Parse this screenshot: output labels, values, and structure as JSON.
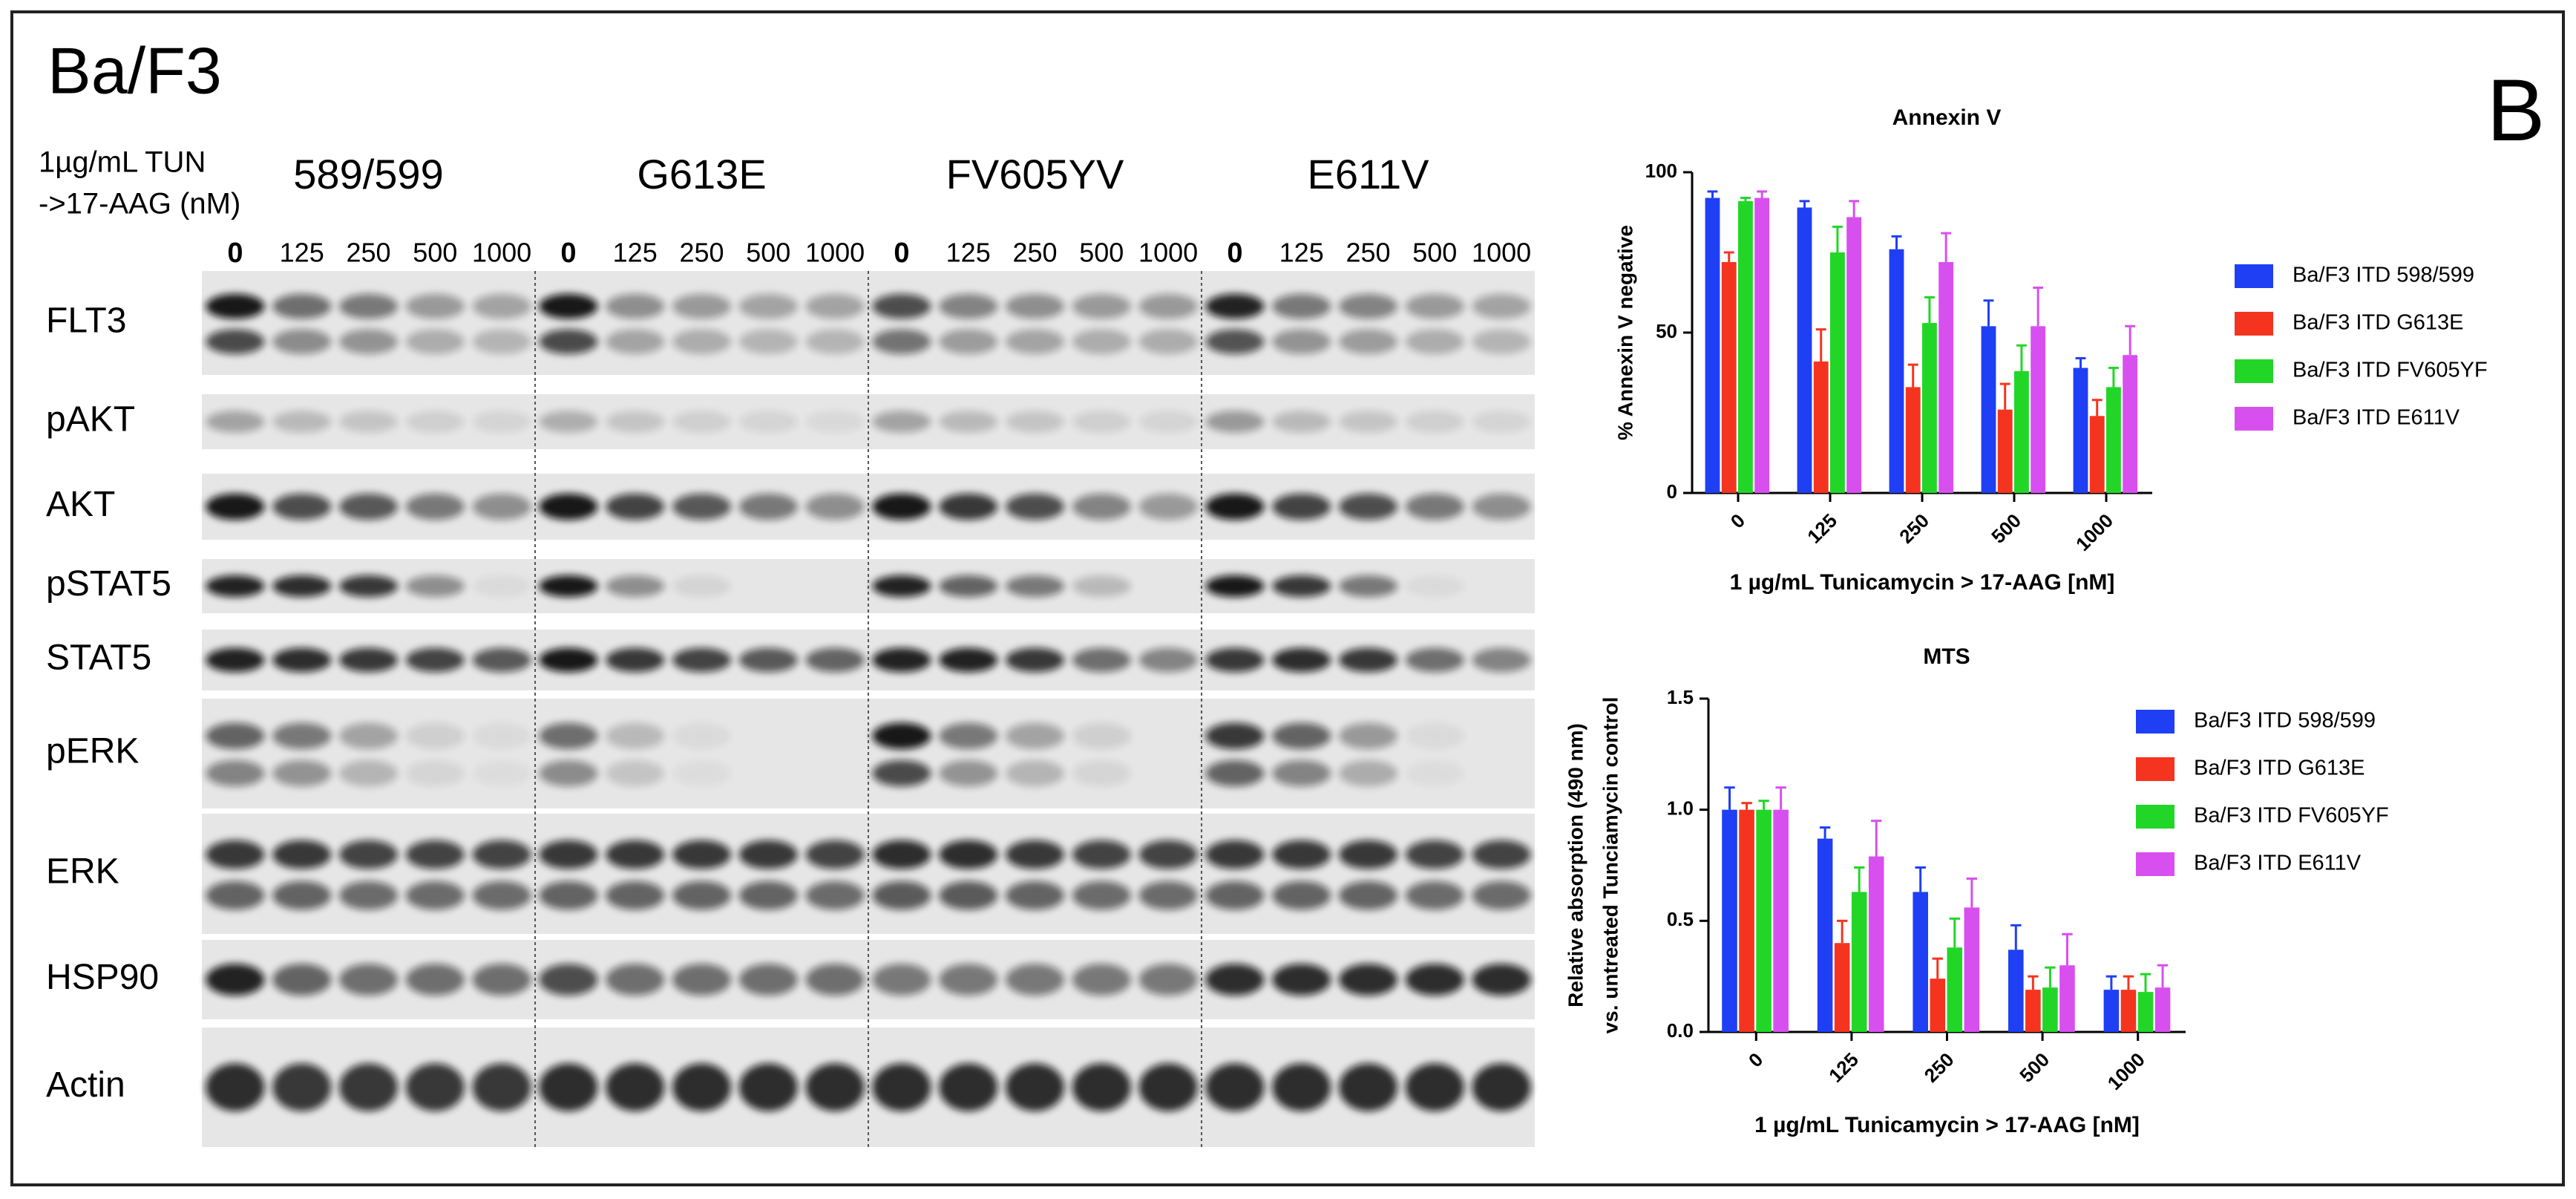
{
  "figure": {
    "title": "Ba/F3",
    "panel": "B",
    "treatment": [
      "1µg/mL TUN",
      "->17-AAG (nM)"
    ],
    "cell_lines": [
      "589/599",
      "G613E",
      "FV605YV",
      "E611V"
    ],
    "concentrations": [
      "0",
      "125",
      "250",
      "500",
      "1000"
    ],
    "proteins": [
      "FLT3",
      "pAKT",
      "AKT",
      "pSTAT5",
      "STAT5",
      "pERK",
      "ERK",
      "HSP90",
      "Actin"
    ]
  },
  "chart_data": [
    {
      "type": "bar",
      "title": "Annexin V",
      "ylabel": [
        "% Annexin V negative"
      ],
      "xlabel": "1 µg/mL Tunicamycin > 17-AAG [nM]",
      "categories": [
        "0",
        "125",
        "250",
        "500",
        "1000"
      ],
      "ylim": [
        0,
        100
      ],
      "yticks": [
        0,
        50,
        100
      ],
      "series": [
        {
          "name": "Ba/F3 ITD 598/599",
          "color": "#1f3ff5",
          "values": [
            92,
            89,
            76,
            52,
            39
          ],
          "errors": [
            2,
            2,
            4,
            8,
            3
          ]
        },
        {
          "name": "Ba/F3 ITD G613E",
          "color": "#f5341f",
          "values": [
            72,
            41,
            33,
            26,
            24
          ],
          "errors": [
            3,
            10,
            7,
            8,
            5
          ]
        },
        {
          "name": "Ba/F3 ITD FV605YF",
          "color": "#22d628",
          "values": [
            91,
            75,
            53,
            38,
            33
          ],
          "errors": [
            1,
            8,
            8,
            8,
            6
          ]
        },
        {
          "name": "Ba/F3 ITD E611V",
          "color": "#d84ff0",
          "values": [
            92,
            86,
            72,
            52,
            43
          ],
          "errors": [
            2,
            5,
            9,
            12,
            9
          ]
        }
      ]
    },
    {
      "type": "bar",
      "title": "MTS",
      "ylabel": [
        "Relative absorption (490 nm)",
        "vs. untreated Tunciamycin control"
      ],
      "xlabel": "1 µg/mL Tunicamycin > 17-AAG [nM]",
      "categories": [
        "0",
        "125",
        "250",
        "500",
        "1000"
      ],
      "ylim": [
        0,
        1.5
      ],
      "yticks": [
        {
          "value": 0,
          "label": "0.0"
        },
        0.5,
        {
          "value": 1,
          "label": "1.0"
        },
        1.5
      ],
      "series": [
        {
          "name": "Ba/F3 ITD 598/599",
          "color": "#1f3ff5",
          "values": [
            1.0,
            0.87,
            0.63,
            0.37,
            0.19
          ],
          "errors": [
            0.1,
            0.05,
            0.11,
            0.11,
            0.06
          ]
        },
        {
          "name": "Ba/F3 ITD G613E",
          "color": "#f5341f",
          "values": [
            1.0,
            0.4,
            0.24,
            0.19,
            0.19
          ],
          "errors": [
            0.03,
            0.1,
            0.09,
            0.06,
            0.06
          ]
        },
        {
          "name": "Ba/F3 ITD FV605YF",
          "color": "#22d628",
          "values": [
            1.0,
            0.63,
            0.38,
            0.2,
            0.18
          ],
          "errors": [
            0.04,
            0.11,
            0.13,
            0.09,
            0.08
          ]
        },
        {
          "name": "Ba/F3 ITD E611V",
          "color": "#d84ff0",
          "values": [
            1.0,
            0.79,
            0.56,
            0.3,
            0.2
          ],
          "errors": [
            0.1,
            0.16,
            0.13,
            0.14,
            0.1
          ]
        }
      ]
    }
  ]
}
